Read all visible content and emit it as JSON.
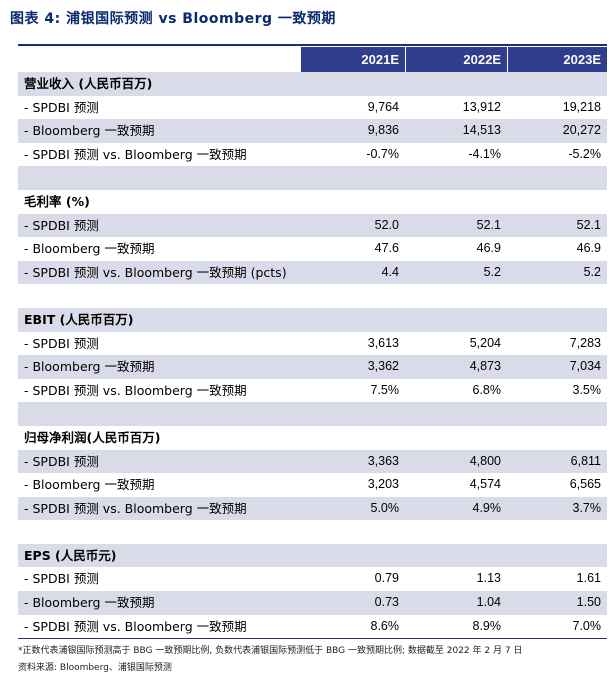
{
  "title": "图表 4:  浦银国际预测  vs Bloomberg 一致预期",
  "columns": [
    "2021E",
    "2022E",
    "2023E"
  ],
  "rows": [
    {
      "label": "营业收入 (人民币百万)",
      "values": [
        "",
        "",
        ""
      ],
      "type": "section",
      "shade": true
    },
    {
      "label": "- SPDBI 预测",
      "values": [
        "9,764",
        "13,912",
        "19,218"
      ],
      "type": "data",
      "shade": false
    },
    {
      "label": "- Bloomberg 一致预期",
      "values": [
        "9,836",
        "14,513",
        "20,272"
      ],
      "type": "data",
      "shade": true
    },
    {
      "label": "- SPDBI 预测  vs. Bloomberg 一致预期",
      "values": [
        "-0.7%",
        "-4.1%",
        "-5.2%"
      ],
      "type": "data",
      "shade": false
    },
    {
      "label": "",
      "values": [
        "",
        "",
        ""
      ],
      "type": "blank",
      "shade": true
    },
    {
      "label": "毛利率  (%)",
      "values": [
        "",
        "",
        ""
      ],
      "type": "section",
      "shade": false
    },
    {
      "label": "- SPDBI 预测",
      "values": [
        "52.0",
        "52.1",
        "52.1"
      ],
      "type": "data",
      "shade": true
    },
    {
      "label": "- Bloomberg 一致预期",
      "values": [
        "47.6",
        "46.9",
        "46.9"
      ],
      "type": "data",
      "shade": false
    },
    {
      "label": "- SPDBI 预测  vs. Bloomberg 一致预期  (pcts)",
      "values": [
        "4.4",
        "5.2",
        "5.2"
      ],
      "type": "data",
      "shade": true
    },
    {
      "label": "",
      "values": [
        "",
        "",
        ""
      ],
      "type": "blank",
      "shade": false
    },
    {
      "label": "EBIT (人民币百万)",
      "values": [
        "",
        "",
        ""
      ],
      "type": "section",
      "shade": true
    },
    {
      "label": "- SPDBI 预测",
      "values": [
        "3,613",
        "5,204",
        "7,283"
      ],
      "type": "data",
      "shade": false
    },
    {
      "label": "- Bloomberg 一致预期",
      "values": [
        "3,362",
        "4,873",
        "7,034"
      ],
      "type": "data",
      "shade": true
    },
    {
      "label": "- SPDBI 预测  vs. Bloomberg 一致预期",
      "values": [
        "7.5%",
        "6.8%",
        "3.5%"
      ],
      "type": "data",
      "shade": false
    },
    {
      "label": "",
      "values": [
        "",
        "",
        ""
      ],
      "type": "blank",
      "shade": true
    },
    {
      "label": "归母净利润(人民币百万)",
      "values": [
        "",
        "",
        ""
      ],
      "type": "section",
      "shade": false
    },
    {
      "label": "- SPDBI 预测",
      "values": [
        "3,363",
        "4,800",
        "6,811"
      ],
      "type": "data",
      "shade": true
    },
    {
      "label": "- Bloomberg 一致预期",
      "values": [
        "3,203",
        "4,574",
        "6,565"
      ],
      "type": "data",
      "shade": false
    },
    {
      "label": "- SPDBI 预测  vs. Bloomberg 一致预期",
      "values": [
        "5.0%",
        "4.9%",
        "3.7%"
      ],
      "type": "data",
      "shade": true
    },
    {
      "label": "",
      "values": [
        "",
        "",
        ""
      ],
      "type": "blank",
      "shade": false
    },
    {
      "label": "EPS (人民币元)",
      "values": [
        "",
        "",
        ""
      ],
      "type": "section",
      "shade": true
    },
    {
      "label": "- SPDBI 预测",
      "values": [
        "0.79",
        "1.13",
        "1.61"
      ],
      "type": "data",
      "shade": false
    },
    {
      "label": "- Bloomberg 一致预期",
      "values": [
        "0.73",
        "1.04",
        "1.50"
      ],
      "type": "data",
      "shade": true
    },
    {
      "label": "- SPDBI 预测  vs. Bloomberg 一致预期",
      "values": [
        "8.6%",
        "8.9%",
        "7.0%"
      ],
      "type": "data",
      "shade": false
    }
  ],
  "footnote": "*正数代表浦银国际预测高于 BBG 一致预期比例, 负数代表浦银国际预测低于 BBG 一致预期比例; 数据截至 2022 年 2 月 7 日",
  "source": "资料来源: Bloomberg、浦银国际预测"
}
